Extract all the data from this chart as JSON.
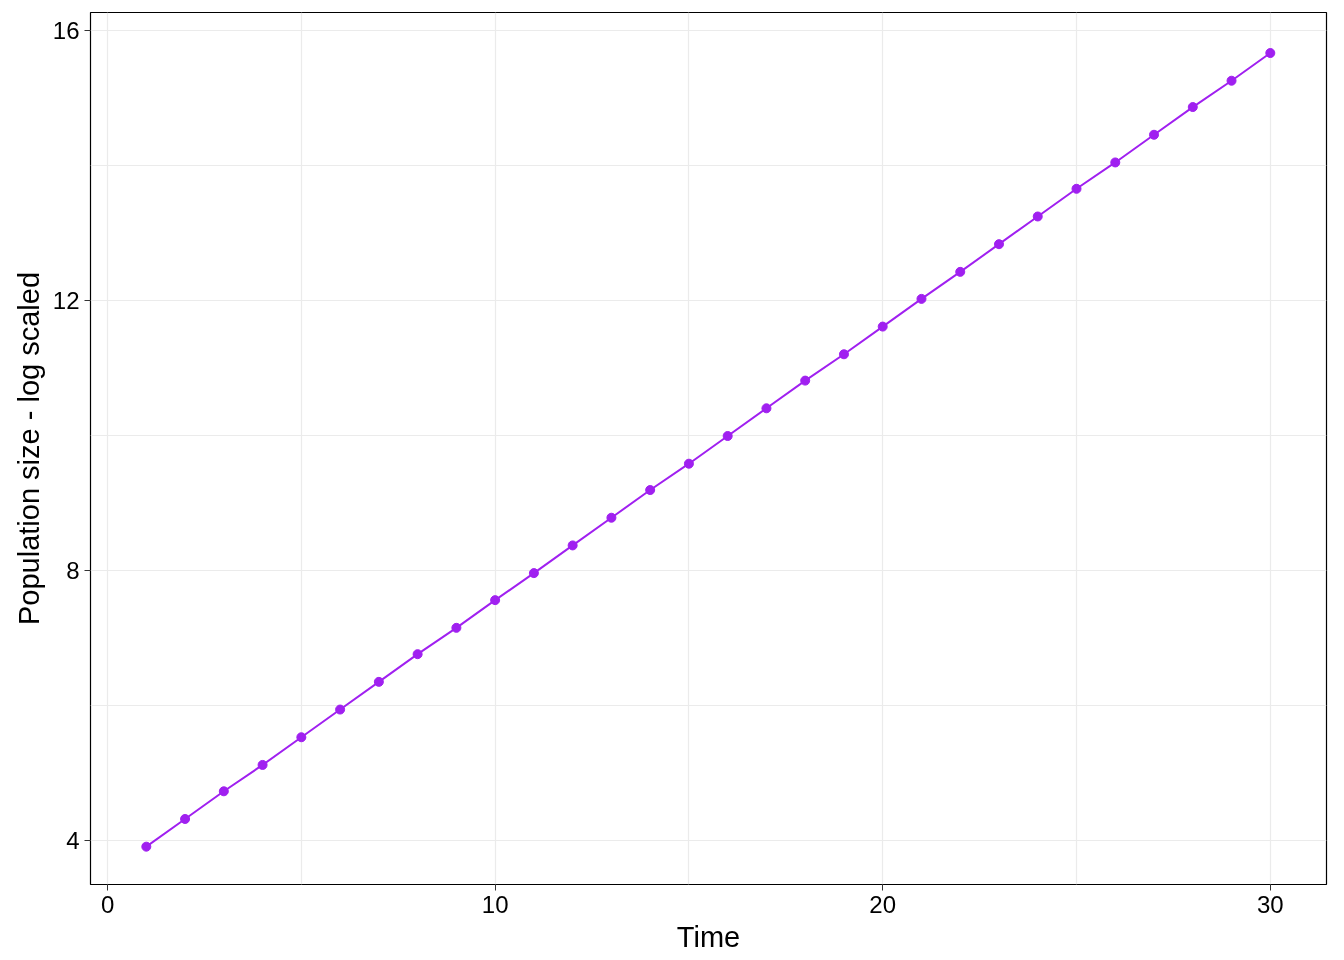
{
  "chart_data": {
    "type": "line",
    "xlabel": "Time",
    "ylabel": "Population size - log scaled",
    "x": [
      1,
      2,
      3,
      4,
      5,
      6,
      7,
      8,
      9,
      10,
      11,
      12,
      13,
      14,
      15,
      16,
      17,
      18,
      19,
      20,
      21,
      22,
      23,
      24,
      25,
      26,
      27,
      28,
      29,
      30
    ],
    "series": [
      {
        "color": "#a020f0",
        "values": [
          3.91,
          4.32,
          4.73,
          5.12,
          5.53,
          5.94,
          6.35,
          6.76,
          7.15,
          7.56,
          7.96,
          8.37,
          8.78,
          9.19,
          9.58,
          9.99,
          10.4,
          10.81,
          11.2,
          11.61,
          12.02,
          12.42,
          12.83,
          13.24,
          13.65,
          14.04,
          14.45,
          14.86,
          15.25,
          15.66
        ]
      }
    ],
    "xlim": [
      -0.44,
      31.45
    ],
    "ylim": [
      3.35,
      16.26
    ],
    "xticks": [
      0,
      {
        "value": 5,
        "label": null
      },
      10,
      {
        "value": 15,
        "label": null
      },
      20,
      {
        "value": 25,
        "label": null
      },
      30
    ],
    "yticks": [
      4,
      {
        "value": 6,
        "label": null
      },
      8,
      {
        "value": 10,
        "label": null
      },
      12,
      {
        "value": 14,
        "label": null
      },
      16
    ],
    "grid": true,
    "marker": "circle",
    "line_style": "solid"
  }
}
